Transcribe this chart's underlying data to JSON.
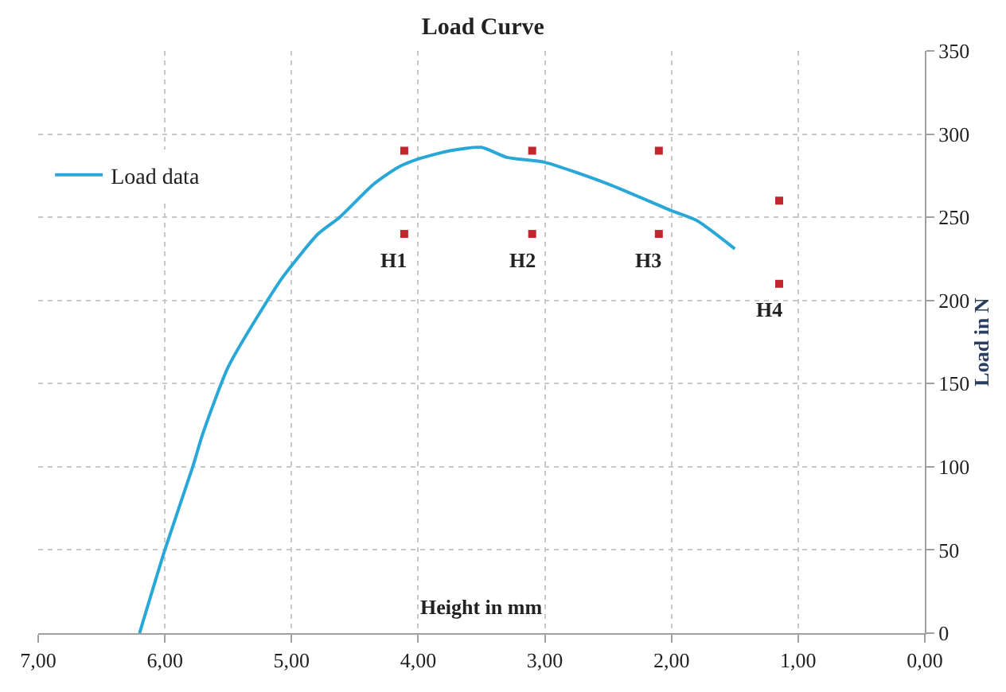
{
  "chart_data": {
    "type": "line",
    "title": "Load Curve",
    "xlabel": "Height in mm",
    "ylabel": "Load in N",
    "xlim": [
      7,
      0
    ],
    "ylim": [
      0,
      350
    ],
    "xticks": [
      {
        "value": 7,
        "label": "7,00"
      },
      {
        "value": 6,
        "label": "6,00"
      },
      {
        "value": 5,
        "label": "5,00"
      },
      {
        "value": 4,
        "label": "4,00"
      },
      {
        "value": 3,
        "label": "3,00"
      },
      {
        "value": 2,
        "label": "2,00"
      },
      {
        "value": 1,
        "label": "1,00"
      },
      {
        "value": 0,
        "label": "0,00"
      }
    ],
    "yticks": [
      0,
      50,
      100,
      150,
      200,
      250,
      300,
      350
    ],
    "grid": true,
    "legend": "top left",
    "series": [
      {
        "name": "Load data",
        "color": "#29a8d8",
        "marker": "none",
        "x": [
          6.2,
          6.0,
          5.78,
          5.7,
          5.5,
          5.19,
          5.06,
          4.79,
          4.62,
          4.35,
          4.16,
          4.0,
          3.75,
          3.5,
          3.3,
          3.0,
          2.5,
          2.0,
          1.8,
          1.5
        ],
        "values": [
          0,
          50,
          100,
          120,
          160,
          200,
          215,
          240,
          250,
          270,
          280,
          285,
          290,
          292,
          286,
          283,
          270,
          254,
          248,
          231
        ]
      },
      {
        "type": "scatter",
        "color": "#c0282d",
        "marker": "square",
        "x": [
          4.11,
          4.11,
          3.1,
          3.1,
          2.1,
          2.1,
          1.15,
          1.15
        ],
        "values": [
          290,
          240,
          290,
          240,
          290,
          240,
          260,
          210
        ]
      }
    ],
    "annotations": [
      {
        "text": "H1",
        "x": 4.11,
        "y": 240
      },
      {
        "text": "H2",
        "x": 3.1,
        "y": 240
      },
      {
        "text": "H3",
        "x": 2.1,
        "y": 240
      },
      {
        "text": "H4",
        "x": 1.15,
        "y": 210
      }
    ]
  }
}
